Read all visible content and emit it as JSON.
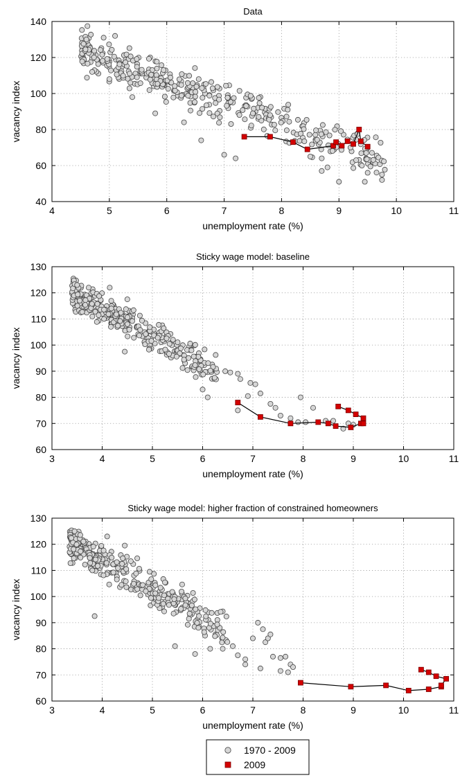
{
  "chart_data": [
    {
      "type": "scatter",
      "title": "Data",
      "xlabel": "unemployment rate (%)",
      "ylabel": "vacancy index",
      "xlim": [
        4,
        11
      ],
      "ylim": [
        40,
        140
      ],
      "xticks": [
        4,
        5,
        6,
        7,
        8,
        9,
        10,
        11
      ],
      "yticks": [
        40,
        60,
        80,
        100,
        120,
        140
      ],
      "grid": true,
      "series": [
        {
          "name": "1970 - 2009",
          "marker": "circle",
          "cluster": {
            "x_start": 4.5,
            "x_end": 9.8,
            "y_start": 124,
            "slope": -11.5,
            "noise": 9,
            "count": 380,
            "seed": 11
          },
          "extra_points": [
            [
              4.6,
              130
            ],
            [
              4.9,
              131
            ],
            [
              5.1,
              132
            ],
            [
              4.7,
              112
            ],
            [
              5.0,
              108
            ],
            [
              5.4,
              98
            ],
            [
              5.8,
              89
            ],
            [
              6.3,
              84
            ],
            [
              6.6,
              74
            ],
            [
              7.0,
              66
            ],
            [
              7.2,
              64
            ],
            [
              7.8,
              88
            ],
            [
              7.5,
              89
            ],
            [
              8.5,
              65
            ],
            [
              8.7,
              64
            ],
            [
              8.8,
              59
            ],
            [
              8.7,
              57
            ],
            [
              9.0,
              51
            ],
            [
              9.3,
              63
            ],
            [
              9.4,
              60
            ],
            [
              9.5,
              56
            ],
            [
              9.45,
              51
            ],
            [
              9.75,
              55
            ],
            [
              9.75,
              52
            ],
            [
              9.2,
              70
            ]
          ]
        },
        {
          "name": "2009",
          "marker": "square",
          "connected": true,
          "points": [
            [
              7.35,
              76
            ],
            [
              7.8,
              76
            ],
            [
              8.2,
              73
            ],
            [
              8.45,
              69
            ],
            [
              8.9,
              71
            ],
            [
              8.95,
              73
            ],
            [
              9.05,
              71
            ],
            [
              9.15,
              73.5
            ],
            [
              9.25,
              72
            ],
            [
              9.35,
              80
            ],
            [
              9.38,
              73.5
            ],
            [
              9.5,
              70.5
            ]
          ]
        }
      ]
    },
    {
      "type": "scatter",
      "title": "Sticky wage model: baseline",
      "xlabel": "unemployment rate (%)",
      "ylabel": "vacancy index",
      "xlim": [
        3,
        11
      ],
      "ylim": [
        60,
        130
      ],
      "xticks": [
        3,
        4,
        5,
        6,
        7,
        8,
        9,
        10,
        11
      ],
      "yticks": [
        60,
        70,
        80,
        90,
        100,
        110,
        120,
        130
      ],
      "grid": true,
      "series": [
        {
          "name": "1970 - 2009",
          "marker": "circle",
          "cluster": {
            "x_start": 3.4,
            "x_end": 6.3,
            "y_start": 120,
            "slope": -10.5,
            "noise": 5,
            "count": 330,
            "seed": 23
          },
          "extra_points": [
            [
              3.5,
              123
            ],
            [
              4.15,
              122
            ],
            [
              4.5,
              117.5
            ],
            [
              4.45,
              97.5
            ],
            [
              6.1,
              80
            ],
            [
              6.0,
              83
            ],
            [
              6.45,
              90
            ],
            [
              6.55,
              89.5
            ],
            [
              6.7,
              89
            ],
            [
              6.75,
              87
            ],
            [
              6.7,
              75
            ],
            [
              6.9,
              80.5
            ],
            [
              6.95,
              85.5
            ],
            [
              7.05,
              85
            ],
            [
              7.15,
              81.5
            ],
            [
              7.35,
              77.5
            ],
            [
              7.45,
              76
            ],
            [
              7.55,
              73
            ],
            [
              7.75,
              72
            ],
            [
              7.9,
              70.5
            ],
            [
              7.95,
              80
            ],
            [
              8.05,
              70.5
            ],
            [
              8.2,
              76
            ],
            [
              8.45,
              71
            ],
            [
              8.6,
              71
            ],
            [
              8.8,
              68
            ],
            [
              8.9,
              70
            ],
            [
              9.0,
              69.5
            ]
          ]
        },
        {
          "name": "2009",
          "marker": "square",
          "connected": true,
          "points": [
            [
              6.7,
              78
            ],
            [
              7.15,
              72.5
            ],
            [
              7.75,
              70
            ],
            [
              8.3,
              70.5
            ],
            [
              8.5,
              70
            ],
            [
              8.65,
              69
            ],
            [
              8.95,
              68.5
            ],
            [
              9.15,
              70
            ],
            [
              9.2,
              70
            ],
            [
              9.2,
              72
            ],
            [
              9.05,
              73.5
            ],
            [
              8.9,
              75
            ],
            [
              8.7,
              76.5
            ]
          ]
        }
      ]
    },
    {
      "type": "scatter",
      "title": "Sticky wage model: higher fraction of constrained homeowners",
      "xlabel": "unemployment rate (%)",
      "ylabel": "vacancy index",
      "xlim": [
        3,
        11
      ],
      "ylim": [
        60,
        130
      ],
      "xticks": [
        3,
        4,
        5,
        6,
        7,
        8,
        9,
        10,
        11
      ],
      "yticks": [
        60,
        70,
        80,
        90,
        100,
        110,
        120,
        130
      ],
      "grid": true,
      "series": [
        {
          "name": "1970 - 2009",
          "marker": "circle",
          "cluster": {
            "x_start": 3.35,
            "x_end": 6.5,
            "y_start": 120,
            "slope": -10.5,
            "noise": 5.5,
            "count": 330,
            "seed": 37
          },
          "extra_points": [
            [
              3.45,
              125
            ],
            [
              4.1,
              123
            ],
            [
              4.45,
              119.5
            ],
            [
              3.85,
              92.5
            ],
            [
              5.45,
              81
            ],
            [
              5.85,
              78
            ],
            [
              6.15,
              80
            ],
            [
              6.4,
              80
            ],
            [
              6.6,
              81
            ],
            [
              6.7,
              77.5
            ],
            [
              6.85,
              76
            ],
            [
              6.85,
              74
            ],
            [
              7.0,
              84
            ],
            [
              7.1,
              90
            ],
            [
              7.2,
              87.5
            ],
            [
              7.25,
              82.5
            ],
            [
              7.3,
              84
            ],
            [
              7.35,
              85.5
            ],
            [
              7.4,
              77
            ],
            [
              7.55,
              76.5
            ],
            [
              7.65,
              77
            ],
            [
              7.75,
              74
            ],
            [
              7.8,
              73
            ],
            [
              7.7,
              71
            ],
            [
              7.55,
              71.5
            ],
            [
              7.15,
              72.5
            ]
          ]
        },
        {
          "name": "2009",
          "marker": "square",
          "connected": true,
          "points": [
            [
              7.95,
              67
            ],
            [
              8.95,
              65.5
            ],
            [
              9.65,
              66
            ],
            [
              10.1,
              64
            ],
            [
              10.5,
              64.5
            ],
            [
              10.75,
              65.5
            ],
            [
              10.75,
              66
            ],
            [
              10.85,
              68.5
            ],
            [
              10.65,
              69.5
            ],
            [
              10.5,
              71
            ],
            [
              10.35,
              72
            ]
          ]
        }
      ]
    }
  ],
  "legend": {
    "entries": [
      "1970 - 2009",
      "2009"
    ],
    "placement": "bottom-center"
  }
}
